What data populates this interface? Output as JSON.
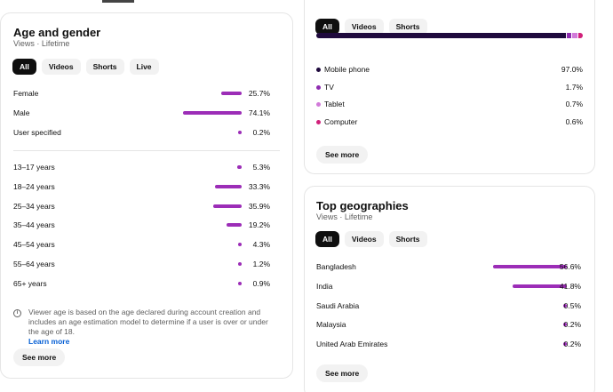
{
  "age_gender": {
    "title": "Age and gender",
    "subtitle": "Views · Lifetime",
    "chips": [
      "All",
      "Videos",
      "Shorts",
      "Live"
    ],
    "gender": [
      {
        "label": "Female",
        "value": "25.7%",
        "pct": 25.7
      },
      {
        "label": "Male",
        "value": "74.1%",
        "pct": 74.1
      },
      {
        "label": "User specified",
        "value": "0.2%",
        "pct": 0.2
      }
    ],
    "ages": [
      {
        "label": "13–17 years",
        "value": "5.3%",
        "pct": 5.3
      },
      {
        "label": "18–24 years",
        "value": "33.3%",
        "pct": 33.3
      },
      {
        "label": "25–34 years",
        "value": "35.9%",
        "pct": 35.9
      },
      {
        "label": "35–44 years",
        "value": "19.2%",
        "pct": 19.2
      },
      {
        "label": "45–54 years",
        "value": "4.3%",
        "pct": 4.3
      },
      {
        "label": "55–64 years",
        "value": "1.2%",
        "pct": 1.2
      },
      {
        "label": "65+ years",
        "value": "0.9%",
        "pct": 0.9
      }
    ],
    "info_text": "Viewer age is based on the age declared during account creation and includes an age estimation model to determine if a user is over or under the age of 18.",
    "learn_more": "Learn more",
    "see_more": "See more"
  },
  "device": {
    "chips": [
      "All",
      "Videos",
      "Shorts"
    ],
    "items": [
      {
        "label": "Mobile phone",
        "value": "97.0%",
        "pct": 97.0,
        "color": "#1f0a3d"
      },
      {
        "label": "TV",
        "value": "1.7%",
        "pct": 1.7,
        "color": "#8e2cb0"
      },
      {
        "label": "Tablet",
        "value": "0.7%",
        "pct": 0.7,
        "color": "#d17ad9"
      },
      {
        "label": "Computer",
        "value": "0.6%",
        "pct": 0.6,
        "color": "#d1207a"
      }
    ],
    "see_more": "See more"
  },
  "geo": {
    "title": "Top geographies",
    "subtitle": "Views · Lifetime",
    "chips": [
      "All",
      "Videos",
      "Shorts"
    ],
    "items": [
      {
        "label": "Bangladesh",
        "value": "56.6%",
        "pct": 56.6
      },
      {
        "label": "India",
        "value": "41.8%",
        "pct": 41.8
      },
      {
        "label": "Saudi Arabia",
        "value": "0.5%",
        "pct": 0.5
      },
      {
        "label": "Malaysia",
        "value": "0.2%",
        "pct": 0.2
      },
      {
        "label": "United Arab Emirates",
        "value": "0.2%",
        "pct": 0.2
      }
    ],
    "see_more": "See more"
  },
  "colors": {
    "bar": "#9c2db7",
    "chip_active": "#0f0f0f",
    "link": "#065fd4"
  }
}
